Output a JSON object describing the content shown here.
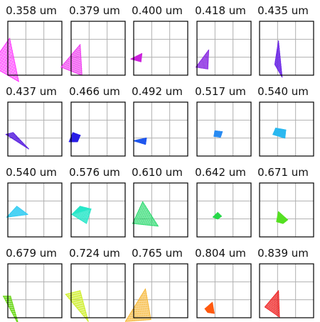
{
  "chart_data": {
    "type": "scatter",
    "grid": true,
    "layout": "4 rows x 5 columns of spot-diagram panels",
    "panels": [
      {
        "title": "0.358 um",
        "color": "#ff33ff",
        "shape": "triangle",
        "points": [
          [
            -0.95,
            0.55
          ],
          [
            0.1,
            2.05
          ],
          [
            0.6,
            -0.35
          ]
        ],
        "density": "dense"
      },
      {
        "title": "0.379 um",
        "color": "#ef36ef",
        "shape": "triangle",
        "points": [
          [
            -0.55,
            0.45
          ],
          [
            0.5,
            1.7
          ],
          [
            0.6,
            0.0
          ]
        ],
        "density": "dense"
      },
      {
        "title": "0.400 um",
        "color": "#cc22dd",
        "shape": "triangle",
        "points": [
          [
            -0.15,
            0.9
          ],
          [
            0.45,
            1.2
          ],
          [
            0.4,
            0.75
          ]
        ],
        "density": "dense"
      },
      {
        "title": "0.418 um",
        "color": "#8a2be2",
        "shape": "triangle",
        "points": [
          [
            -0.05,
            0.45
          ],
          [
            0.65,
            1.4
          ],
          [
            0.6,
            0.35
          ]
        ],
        "density": "dense"
      },
      {
        "title": "0.435 um",
        "color": "#6a24e6",
        "shape": "triangle",
        "points": [
          [
            0.85,
            0.6
          ],
          [
            1.05,
            1.9
          ],
          [
            1.25,
            -0.1
          ]
        ],
        "density": "dense"
      },
      {
        "title": "0.437 um",
        "color": "#5a22e0",
        "shape": "triangle",
        "points": [
          [
            -0.1,
            1.2
          ],
          [
            0.3,
            1.3
          ],
          [
            1.15,
            0.4
          ]
        ],
        "density": "dense"
      },
      {
        "title": "0.466 um",
        "color": "#2a1ee6",
        "shape": "blob",
        "points": [
          [
            -0.1,
            0.8
          ],
          [
            0.1,
            1.3
          ],
          [
            0.5,
            1.15
          ],
          [
            0.35,
            0.8
          ]
        ],
        "density": "dense"
      },
      {
        "title": "0.492 um",
        "color": "#1f56ee",
        "shape": "triangle",
        "points": [
          [
            0.0,
            0.85
          ],
          [
            0.7,
            1.0
          ],
          [
            0.65,
            0.65
          ]
        ],
        "density": "dense"
      },
      {
        "title": "0.517 um",
        "color": "#2a8cf2",
        "shape": "blob",
        "points": [
          [
            0.95,
            1.1
          ],
          [
            1.0,
            1.4
          ],
          [
            1.4,
            1.35
          ],
          [
            1.3,
            1.05
          ]
        ],
        "density": "dense"
      },
      {
        "title": "0.540 um",
        "color": "#2ab8f0",
        "shape": "blob",
        "points": [
          [
            0.75,
            1.2
          ],
          [
            0.9,
            1.55
          ],
          [
            1.45,
            1.45
          ],
          [
            1.4,
            1.0
          ]
        ],
        "density": "dense"
      },
      {
        "title": "0.540 um",
        "color": "#33ccf2",
        "shape": "triangle",
        "points": [
          [
            -0.05,
            1.1
          ],
          [
            0.5,
            1.7
          ],
          [
            1.1,
            1.25
          ]
        ],
        "density": "dense"
      },
      {
        "title": "0.576 um",
        "color": "#26e6c8",
        "shape": "blob",
        "points": [
          [
            0.05,
            1.25
          ],
          [
            0.5,
            1.7
          ],
          [
            1.1,
            1.55
          ],
          [
            0.85,
            0.75
          ]
        ],
        "density": "dense"
      },
      {
        "title": "0.610 um",
        "color": "#26d96b",
        "shape": "triangle",
        "points": [
          [
            -0.05,
            0.75
          ],
          [
            0.5,
            1.95
          ],
          [
            1.35,
            0.6
          ]
        ],
        "density": "dense"
      },
      {
        "title": "0.642 um",
        "color": "#28d84a",
        "shape": "blob",
        "points": [
          [
            0.9,
            1.1
          ],
          [
            1.15,
            1.35
          ],
          [
            1.35,
            1.15
          ],
          [
            1.15,
            1.0
          ]
        ],
        "density": "dense"
      },
      {
        "title": "0.671 um",
        "color": "#55e022",
        "shape": "blob",
        "points": [
          [
            0.95,
            0.85
          ],
          [
            1.05,
            1.4
          ],
          [
            1.55,
            0.95
          ],
          [
            1.3,
            0.75
          ]
        ],
        "density": "dense"
      },
      {
        "title": "0.679 um",
        "color": "#6ad818",
        "shape": "triangle",
        "points": [
          [
            -0.25,
            1.2
          ],
          [
            0.15,
            1.2
          ],
          [
            0.6,
            -0.4
          ]
        ],
        "density": "dense"
      },
      {
        "title": "0.724 um",
        "color": "#cdee26",
        "shape": "triangle",
        "points": [
          [
            -0.3,
            1.3
          ],
          [
            0.5,
            1.5
          ],
          [
            0.95,
            -0.2
          ]
        ],
        "density": "dense"
      },
      {
        "title": "0.765 um",
        "color": "#f5b430",
        "shape": "triangle",
        "points": [
          [
            -0.45,
            -0.2
          ],
          [
            0.65,
            1.6
          ],
          [
            0.95,
            -0.1
          ]
        ],
        "density": "dense"
      },
      {
        "title": "0.804 um",
        "color": "#ff5a10",
        "shape": "blob",
        "points": [
          [
            0.45,
            0.5
          ],
          [
            0.85,
            0.85
          ],
          [
            0.95,
            0.25
          ],
          [
            0.6,
            0.3
          ]
        ],
        "density": "dense"
      },
      {
        "title": "0.839 um",
        "color": "#ee1f1f",
        "shape": "triangle",
        "points": [
          [
            0.3,
            0.6
          ],
          [
            1.05,
            1.5
          ],
          [
            1.1,
            0.05
          ]
        ],
        "density": "dense"
      }
    ]
  }
}
